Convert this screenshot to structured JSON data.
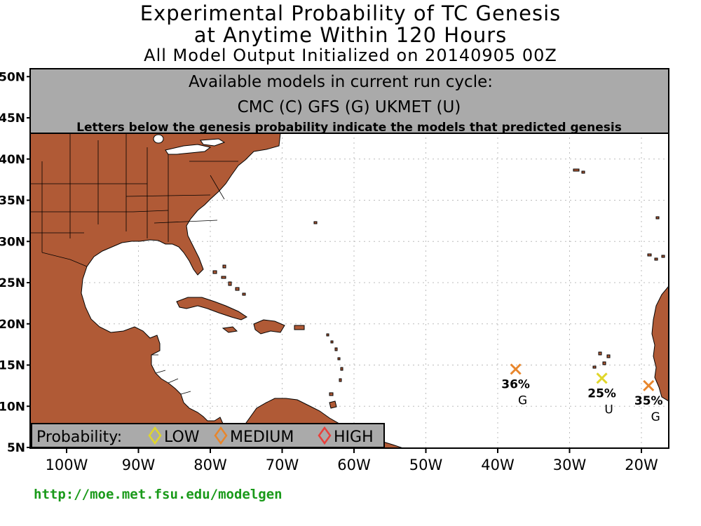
{
  "title": {
    "line1": "Experimental Probability of TC Genesis",
    "line2": "at Anytime Within 120 Hours",
    "line3": "All Model Output Initialized on 20140905 00Z"
  },
  "info_box": {
    "line1": "Available models in current run cycle:",
    "line2": "CMC (C) GFS (G)  UKMET (U)",
    "line3": "Letters below the genesis probability indicate the models that predicted genesis"
  },
  "axes": {
    "lat_labels": [
      "50N",
      "45N",
      "40N",
      "35N",
      "30N",
      "25N",
      "20N",
      "15N",
      "10N",
      "5N"
    ],
    "lon_labels": [
      "100W",
      "90W",
      "80W",
      "70W",
      "60W",
      "50W",
      "40W",
      "30W",
      "20W"
    ]
  },
  "legend": {
    "label": "Probability:",
    "items": [
      {
        "name": "LOW",
        "color": "#e0d62a"
      },
      {
        "name": "MEDIUM",
        "color": "#e8862c"
      },
      {
        "name": "HIGH",
        "color": "#e8403c"
      }
    ]
  },
  "markers": [
    {
      "lon": -37.5,
      "lat": 14.5,
      "percent": "36%",
      "models": "G",
      "color": "#e8862c"
    },
    {
      "lon": -25.5,
      "lat": 13.4,
      "percent": "25%",
      "models": "U",
      "color": "#e0d62a"
    },
    {
      "lon": -19.0,
      "lat": 12.5,
      "percent": "35%",
      "models": "G",
      "color": "#e8862c"
    }
  ],
  "colors": {
    "land": "#b05a36",
    "ocean": "#ffffff",
    "grid": "#bbbbbb"
  },
  "url": "http://moe.met.fsu.edu/modelgen"
}
